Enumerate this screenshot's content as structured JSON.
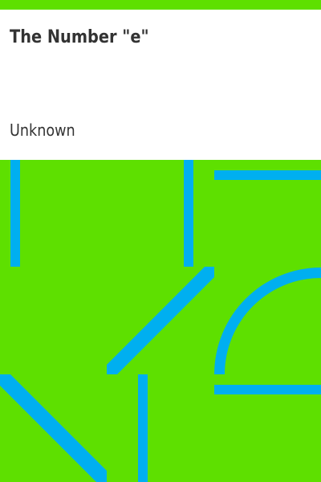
{
  "book": {
    "title": "The Number \"e\"",
    "author": "Unknown"
  },
  "colors": {
    "background": "#5ee000",
    "pattern": "#00aff0",
    "panel": "#ffffff",
    "text": "#333333"
  }
}
